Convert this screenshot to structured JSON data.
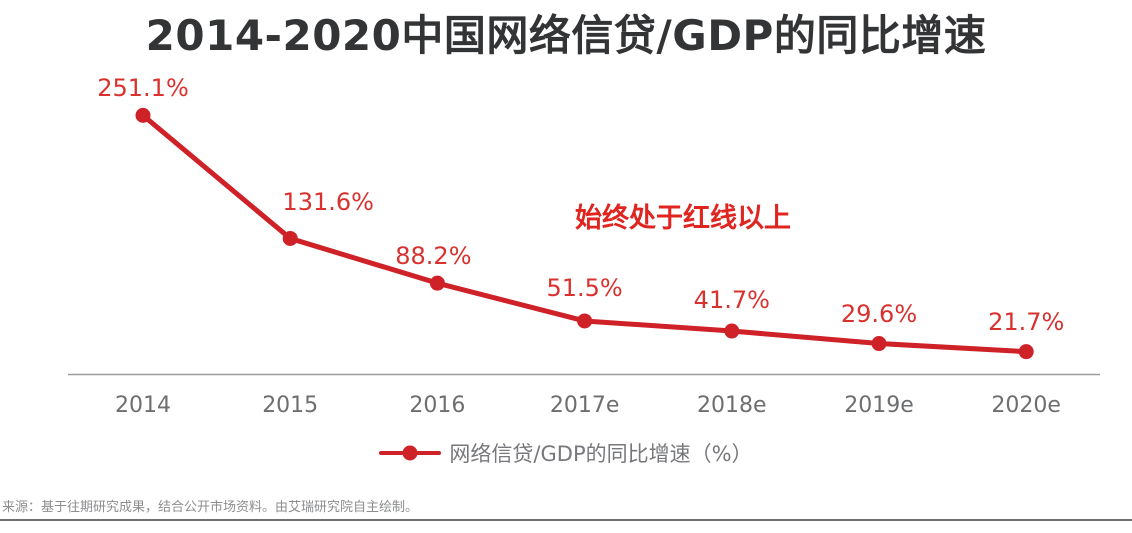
{
  "title": "2014-2020中国网络信贷/GDP的同比增速",
  "annotation": "始终处于红线以上",
  "legend": {
    "label": "网络信贷/GDP的同比增速（%）",
    "position": "bottom"
  },
  "source_note": "来源：基于往期研究成果，结合公开市场资料。由艾瑞研究院自主绘制。",
  "colors": {
    "line": "#cf2128",
    "marker": "#cf2128",
    "value_label": "#d8312e",
    "annotation": "#e0241f",
    "axis": "#9a9a9c",
    "tick_label": "#6d6e70",
    "legend_text": "#77787b",
    "title": "#333436",
    "source": "#8c8d8f"
  },
  "chart_data": {
    "type": "line",
    "title": "2014-2020中国网络信贷/GDP的同比增速",
    "categories": [
      "2014",
      "2015",
      "2016",
      "2017e",
      "2018e",
      "2019e",
      "2020e"
    ],
    "series": [
      {
        "name": "网络信贷/GDP的同比增速（%）",
        "values": [
          251.1,
          131.6,
          88.2,
          51.5,
          41.7,
          29.6,
          21.7
        ]
      }
    ],
    "point_labels": [
      "251.1%",
      "131.6%",
      "88.2%",
      "51.5%",
      "41.7%",
      "29.6%",
      "21.7%"
    ],
    "xlabel": "",
    "ylabel": "",
    "ylim": [
      0,
      270
    ],
    "grid": false,
    "y_axis_visible": false,
    "x_axis_visible": true,
    "legend_position": "bottom",
    "annotation_text": "始终处于红线以上"
  }
}
